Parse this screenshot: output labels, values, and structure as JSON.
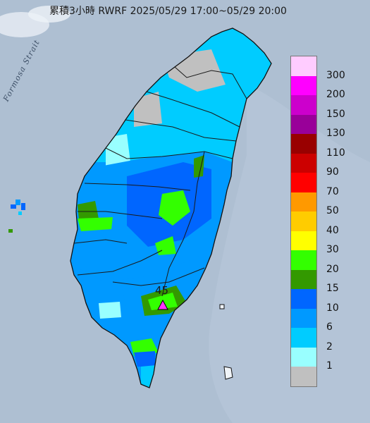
{
  "title": "累積3小時 RWRF 2025/05/29 17:00~05/29 20:00",
  "map": {
    "sea_label": "Formosa Strait",
    "peak_value": "45",
    "peak_marker_color": "#ff33ff"
  },
  "legend": {
    "colors": [
      "#ffccff",
      "#ff00ff",
      "#cc00cc",
      "#990099",
      "#990000",
      "#cc0000",
      "#ff0000",
      "#ff9900",
      "#ffcc00",
      "#ffff00",
      "#33ff00",
      "#339900",
      "#0066ff",
      "#0099ff",
      "#00ccff",
      "#99ffff",
      "#c0c0c0"
    ],
    "labels": [
      "300",
      "200",
      "150",
      "130",
      "110",
      "90",
      "70",
      "50",
      "40",
      "30",
      "20",
      "15",
      "10",
      "6",
      "2",
      "1"
    ]
  }
}
